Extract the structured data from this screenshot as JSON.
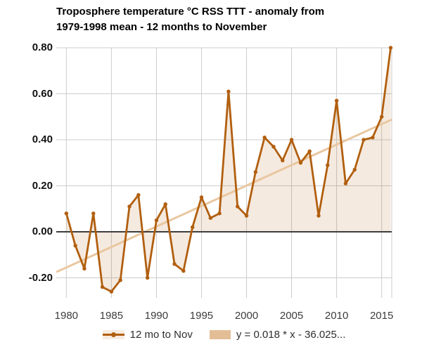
{
  "title": {
    "line1": "Troposphere temperature °C RSS TTT - anomaly from",
    "line2": "1979-1998 mean - 12 months to November"
  },
  "chart_data": {
    "type": "line",
    "title": "Troposphere temperature °C RSS TTT - anomaly from 1979-1998 mean - 12 months to November",
    "xlabel": "",
    "ylabel": "",
    "x": [
      1980,
      1981,
      1982,
      1983,
      1984,
      1985,
      1986,
      1987,
      1988,
      1989,
      1990,
      1991,
      1992,
      1993,
      1994,
      1995,
      1996,
      1997,
      1998,
      1999,
      2000,
      2001,
      2002,
      2003,
      2004,
      2005,
      2006,
      2007,
      2008,
      2009,
      2010,
      2011,
      2012,
      2013,
      2014,
      2015,
      2016
    ],
    "series": [
      {
        "name": "12 mo to Nov",
        "values": [
          0.08,
          -0.06,
          -0.16,
          0.08,
          -0.24,
          -0.26,
          -0.21,
          0.11,
          0.16,
          -0.2,
          0.05,
          0.12,
          -0.14,
          -0.17,
          0.02,
          0.15,
          0.06,
          0.08,
          0.61,
          0.11,
          0.07,
          0.26,
          0.41,
          0.37,
          0.31,
          0.4,
          0.3,
          0.35,
          0.07,
          0.29,
          0.57,
          0.21,
          0.27,
          0.4,
          0.41,
          0.5,
          0.8
        ]
      }
    ],
    "trendline": {
      "label": "y = 0.018 * x - 36.025...",
      "slope": 0.018,
      "x1": 1978.88,
      "v1": -0.175,
      "x2": 2016.12,
      "v2": 0.488
    },
    "x_ticks": [
      "1980",
      "1985",
      "1990",
      "1995",
      "2000",
      "2005",
      "2010",
      "2015"
    ],
    "x_tick_values": [
      1980,
      1985,
      1990,
      1995,
      2000,
      2005,
      2010,
      2015
    ],
    "y_ticks": [
      "0.80",
      "0.60",
      "0.40",
      "0.20",
      "0.00",
      "-0.20"
    ],
    "y_tick_values": [
      0.8,
      0.6,
      0.4,
      0.2,
      0.0,
      -0.2
    ],
    "xlim": [
      1978.88,
      2016.12
    ],
    "ylim": [
      -0.287,
      0.8
    ],
    "grid": true,
    "zero_line": true,
    "legend_position": "bottom",
    "area_fill_to_zero": true,
    "colors": {
      "series": "#b15f0f",
      "fill_opacity": 0.13,
      "trend_line": "#e9c7a0",
      "trend_swatch": "#e3bd95",
      "series_swatch_bg": "#f6ece1",
      "grid": "#cccccc",
      "zero_line": "#3d3d3d",
      "x_label": "#3c3c3c",
      "y_label": "#111111",
      "title": "#000000",
      "legend_text": "#2e2e2e",
      "background": "#ffffff"
    }
  }
}
